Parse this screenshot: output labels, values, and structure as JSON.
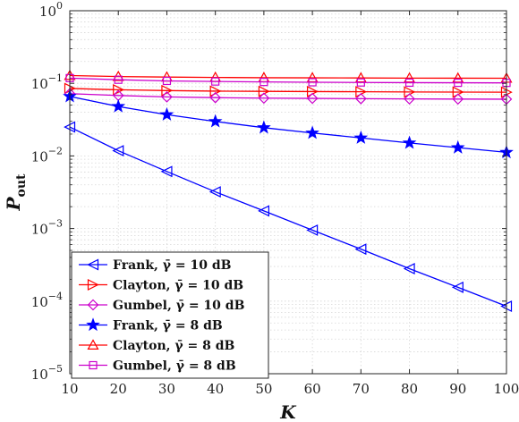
{
  "chart_data": {
    "type": "line",
    "title": "",
    "xlabel": "K",
    "ylabel": "P",
    "ylabel_sub": "out",
    "xlim": [
      10,
      100
    ],
    "ylim": [
      1e-05,
      1
    ],
    "yscale": "log",
    "grid": true,
    "legend_position": "bottom-left",
    "x": [
      10,
      20,
      30,
      40,
      50,
      60,
      70,
      80,
      90,
      100
    ],
    "x_ticks": [
      "10",
      "20",
      "30",
      "40",
      "50",
      "60",
      "70",
      "80",
      "90",
      "100"
    ],
    "y_ticks": [
      {
        "value": 1e-05,
        "base": "10",
        "exp": "−5"
      },
      {
        "value": 0.0001,
        "base": "10",
        "exp": "−4"
      },
      {
        "value": 0.001,
        "base": "10",
        "exp": "−3"
      },
      {
        "value": 0.01,
        "base": "10",
        "exp": "−2"
      },
      {
        "value": 0.1,
        "base": "10",
        "exp": "−1"
      },
      {
        "value": 1,
        "base": "10",
        "exp": "0"
      }
    ],
    "series": [
      {
        "name": "Frank, γ̄ = 10 dB",
        "color": "#0000ff",
        "marker": "triangle-left",
        "values": [
          0.025,
          0.0118,
          0.0061,
          0.0032,
          0.00175,
          0.00095,
          0.00052,
          0.00028,
          0.000155,
          8.5e-05
        ]
      },
      {
        "name": "Clayton, γ̄ = 10 dB",
        "color": "#ff0000",
        "marker": "triangle-right",
        "values": [
          0.085,
          0.0815,
          0.0795,
          0.078,
          0.0775,
          0.077,
          0.0765,
          0.076,
          0.0758,
          0.0755
        ]
      },
      {
        "name": "Gumbel, γ̄ = 10 dB",
        "color": "#cc00cc",
        "marker": "diamond",
        "values": [
          0.072,
          0.068,
          0.065,
          0.0635,
          0.0625,
          0.062,
          0.0615,
          0.061,
          0.0607,
          0.0605
        ]
      },
      {
        "name": "Frank, γ̄ = 8 dB",
        "color": "#0000ff",
        "marker": "star",
        "values": [
          0.066,
          0.048,
          0.037,
          0.0298,
          0.0245,
          0.0207,
          0.0177,
          0.0151,
          0.013,
          0.0112
        ]
      },
      {
        "name": "Clayton, γ̄ = 8 dB",
        "color": "#ff0000",
        "marker": "triangle-up",
        "values": [
          0.128,
          0.124,
          0.122,
          0.1205,
          0.1195,
          0.119,
          0.1185,
          0.118,
          0.1178,
          0.1175
        ]
      },
      {
        "name": "Gumbel, γ̄ = 8 dB",
        "color": "#cc00cc",
        "marker": "square",
        "values": [
          0.118,
          0.112,
          0.108,
          0.106,
          0.1045,
          0.1035,
          0.1028,
          0.1022,
          0.1018,
          0.1015
        ]
      }
    ]
  }
}
